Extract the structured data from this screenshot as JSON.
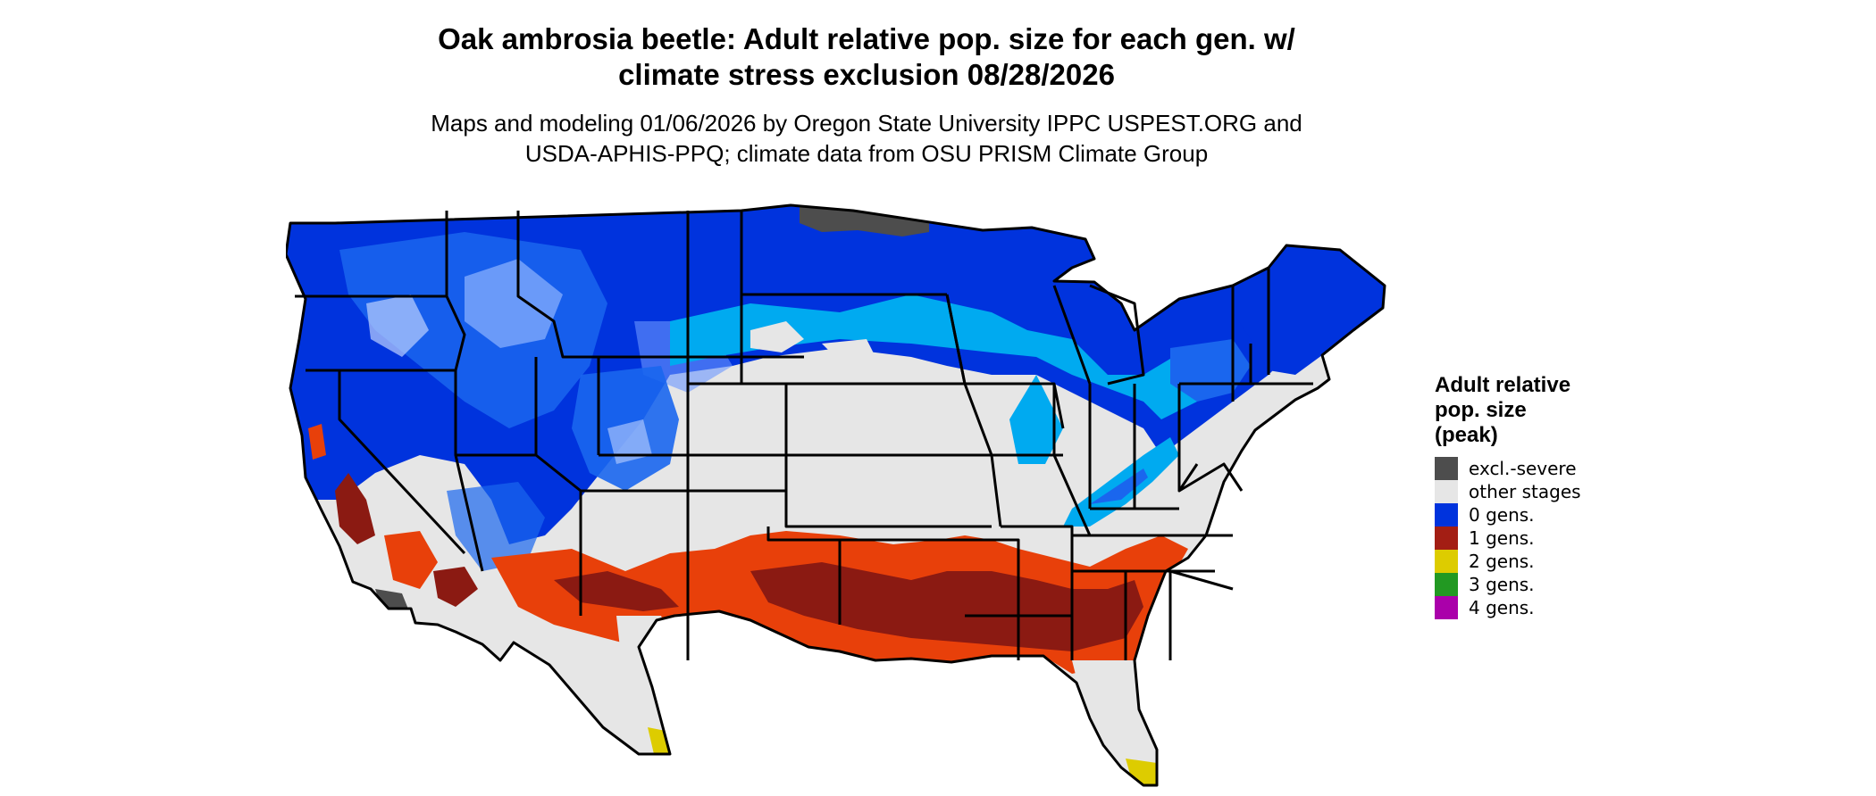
{
  "title": {
    "line1": "Oak ambrosia beetle: Adult relative pop. size for each gen. w/",
    "line2": "climate stress exclusion 08/28/2026"
  },
  "subtitle": {
    "line1": "Maps and modeling 01/06/2026 by Oregon State University IPPC USPEST.ORG and",
    "line2": "USDA-APHIS-PPQ; climate data from OSU PRISM Climate Group"
  },
  "legend": {
    "title_line1": "Adult relative",
    "title_line2": "pop. size",
    "title_line3": "(peak)",
    "items": [
      {
        "label": "excl.-severe",
        "color": "#4d4d4d"
      },
      {
        "label": "other stages",
        "color": "#e6e6e6"
      },
      {
        "label": "0 gens.",
        "color": "#0033dd"
      },
      {
        "label": "1 gens.",
        "color": "#a31e14"
      },
      {
        "label": "2 gens.",
        "color": "#ddcc00"
      },
      {
        "label": "3 gens.",
        "color": "#229922"
      },
      {
        "label": "4 gens.",
        "color": "#aa00aa"
      }
    ]
  },
  "map_colors": {
    "other": "#e6e6e6",
    "excluded": "#4d4d4d",
    "blue_dark": "#0033dd",
    "blue_mid": "#1a66ee",
    "blue_light": "#00aaf0",
    "red_dark": "#8b1a12",
    "red_orange": "#e8400a",
    "yellow": "#ddcc00",
    "border": "#000000"
  }
}
